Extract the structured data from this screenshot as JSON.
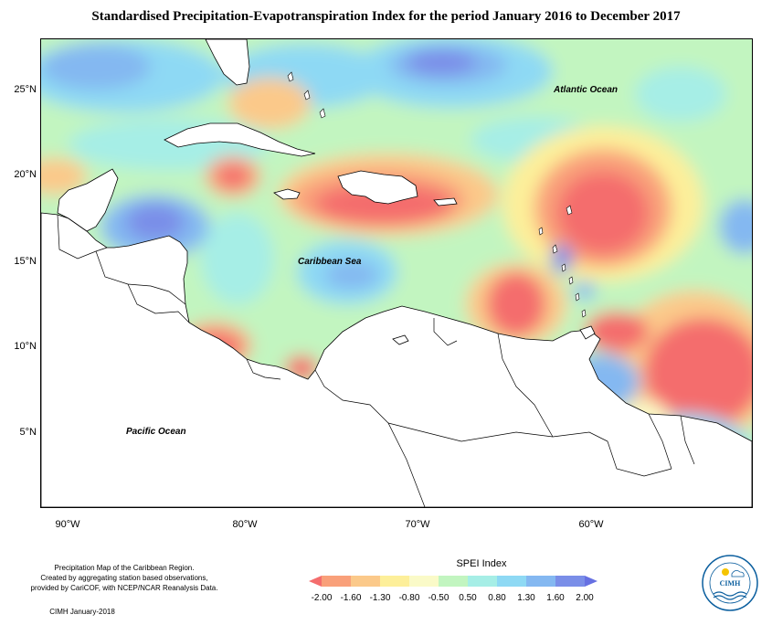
{
  "title": "Standardised Precipitation-Evapotranspiration Index for the period January 2016 to December 2017",
  "map_labels": {
    "atlantic": "Atlantic Ocean",
    "caribbean": "Caribbean Sea",
    "pacific": "Pacific Ocean"
  },
  "axes": {
    "latitude": [
      "25°N",
      "20°N",
      "15°N",
      "10°N",
      "5°N"
    ],
    "longitude": [
      "90°W",
      "80°W",
      "70°W",
      "60°W"
    ]
  },
  "legend": {
    "title": "SPEI Index",
    "ticks": [
      "-2.00",
      "-1.60",
      "-1.30",
      "-0.80",
      "-0.50",
      "0.50",
      "0.80",
      "1.30",
      "1.60",
      "2.00"
    ],
    "colors": [
      "#f46d6d",
      "#f9a07a",
      "#fbc98a",
      "#fdef9a",
      "#fafac8",
      "#c2f5c0",
      "#a6eee6",
      "#8ed9f4",
      "#84b8f1",
      "#7a8ee8",
      "#6670e2"
    ]
  },
  "caption": {
    "line1": "Precipitation Map of the Caribbean Region.",
    "line2": "Created by aggregating station based observations,",
    "line3": "provided by CariCOF, with NCEP/NCAR Reanalysis Data.",
    "credit": "CIMH January-2018"
  },
  "logo": {
    "text": "CIMH"
  }
}
